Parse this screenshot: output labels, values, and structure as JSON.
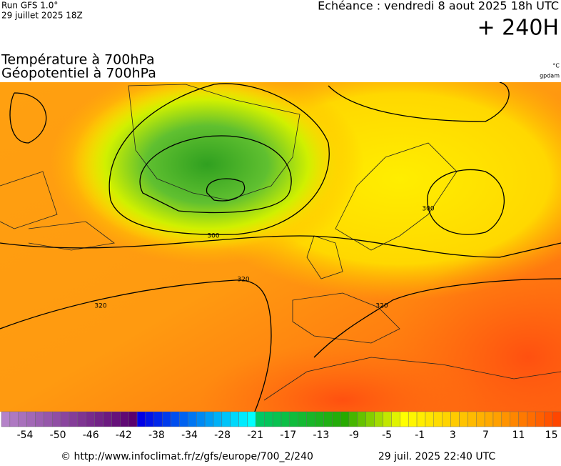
{
  "header": {
    "run": "Run GFS 1.0°",
    "run_date": "29 juillet 2025 18Z",
    "forecast": "Echéance : vendredi 8 aout 2025 18h UTC",
    "lead": "+ 240H"
  },
  "titles": {
    "temperature": "Température à 700hPa",
    "geopotential": "Géopotentiel à 700hPa",
    "temp_unit": "°C",
    "geo_unit": "gpdam"
  },
  "contours": [
    "300",
    "320",
    "320",
    "300",
    "320"
  ],
  "colorbar": {
    "labels": [
      -54,
      -50,
      -46,
      -42,
      -38,
      -34,
      -28,
      -21,
      -17,
      -13,
      -9,
      -5,
      -1,
      3,
      7,
      11,
      15
    ]
  },
  "footer": {
    "source": "© http://www.infoclimat.fr/z/gfs/europe/700_2/240",
    "timestamp": "29 juil. 2025 22:40 UTC"
  }
}
